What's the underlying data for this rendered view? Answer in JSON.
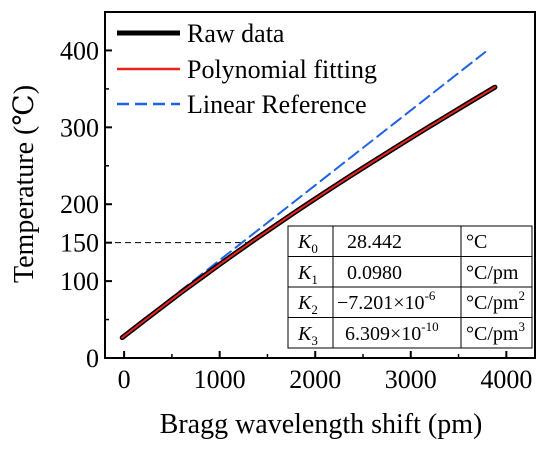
{
  "chart_data": {
    "type": "line",
    "title": "",
    "xlabel": "Bragg wavelength shift (pm)",
    "ylabel": "Temperature (℃)",
    "xlim": [
      -200,
      4300
    ],
    "ylim": [
      0,
      450
    ],
    "xticks": [
      0,
      1000,
      2000,
      3000,
      4000
    ],
    "xtick_labels": [
      "0",
      "1000",
      "2000",
      "3000",
      "4000"
    ],
    "yticks": [
      0,
      100,
      150,
      200,
      300,
      400
    ],
    "ytick_labels": [
      "0",
      "100",
      "150",
      "200",
      "300",
      "400"
    ],
    "grid": false,
    "legend_position": "top-left",
    "series": [
      {
        "name": "Raw data",
        "style": "solid",
        "color": "#000000",
        "x": [
          -20,
          200,
          400,
          600,
          800,
          1000,
          1200,
          1400,
          1600,
          1800,
          2000,
          2200,
          2400,
          2600,
          2800,
          3000,
          3200,
          3400,
          3600,
          3880
        ],
        "y": [
          26.5,
          47.6,
          66.6,
          85.4,
          103.7,
          121.7,
          139.4,
          156.8,
          173.8,
          190.6,
          207.1,
          223.3,
          239.3,
          255.1,
          270.7,
          286.1,
          301.3,
          316.4,
          331.4,
          352.2
        ]
      },
      {
        "name": "Polynomial fitting",
        "style": "solid",
        "color": "#e8231f",
        "x": [
          -20,
          200,
          400,
          600,
          800,
          1000,
          1200,
          1400,
          1600,
          1800,
          2000,
          2200,
          2400,
          2600,
          2800,
          3000,
          3200,
          3400,
          3600,
          3880
        ],
        "y": [
          26.5,
          47.6,
          66.6,
          85.4,
          103.7,
          121.7,
          139.4,
          156.8,
          173.8,
          190.6,
          207.1,
          223.3,
          239.3,
          255.1,
          270.7,
          286.1,
          301.3,
          316.4,
          331.4,
          352.2
        ]
      },
      {
        "name": "Linear Reference",
        "style": "dashed",
        "color": "#2062e6",
        "x": [
          -20,
          3780
        ],
        "y": [
          28.0,
          398.0
        ]
      }
    ],
    "reference_lines": [
      {
        "style": "dashed",
        "color": "#000000",
        "from": [
          -200,
          150
        ],
        "to": [
          1310,
          150
        ]
      }
    ],
    "coefficient_table": [
      {
        "name": "K",
        "sub": "0",
        "value": "28.442",
        "unit": "°C",
        "unit_sup": ""
      },
      {
        "name": "K",
        "sub": "1",
        "value": "0.0980",
        "unit": "°C/pm",
        "unit_sup": ""
      },
      {
        "name": "K",
        "sub": "2",
        "value": "−7.201×10",
        "value_sup": "-6",
        "unit": "°C/pm",
        "unit_sup": "2"
      },
      {
        "name": "K",
        "sub": "3",
        "value": "6.309×10",
        "value_sup": "-10",
        "unit": "°C/pm",
        "unit_sup": "3"
      }
    ]
  }
}
